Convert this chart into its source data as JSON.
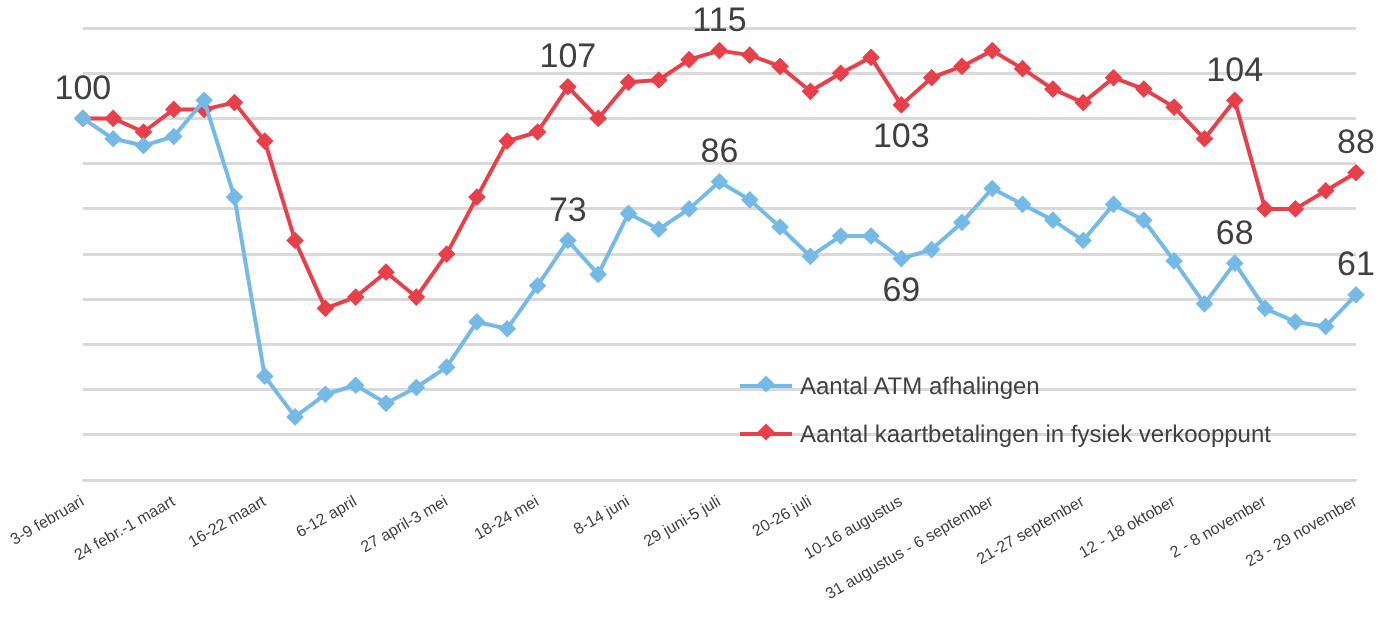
{
  "chart_data": {
    "type": "line",
    "categories": [
      "3-9 februari",
      null,
      null,
      "24 febr.-1 maart",
      null,
      null,
      "16-22 maart",
      null,
      null,
      "6-12 april",
      null,
      null,
      "27 april-3 mei",
      null,
      null,
      "18-24 mei",
      null,
      null,
      "8-14 juni",
      null,
      null,
      "29 juni-5 juli",
      null,
      null,
      "20-26 juli",
      null,
      null,
      "10-16 augustus",
      null,
      null,
      "31 augustus - 6 september",
      null,
      null,
      "21-27 september",
      null,
      null,
      "12 - 18 oktober",
      null,
      null,
      "2 - 8 november",
      null,
      null,
      "23 - 29 november"
    ],
    "series": [
      {
        "name": "Aantal ATM afhalingen",
        "color": "#75b9e6",
        "values": [
          100,
          95.5,
          94,
          96,
          104,
          82.6,
          43,
          34,
          39,
          41,
          37,
          40.5,
          45,
          55,
          53.5,
          63,
          73,
          65.5,
          79,
          75.5,
          80,
          86,
          82,
          76,
          69.5,
          74,
          74,
          69,
          71,
          77,
          84.5,
          81,
          77.5,
          73,
          81,
          77.5,
          68.5,
          59,
          68,
          58,
          55,
          54,
          61
        ],
        "value_labels": [
          null,
          null,
          null,
          null,
          null,
          null,
          null,
          null,
          null,
          null,
          null,
          null,
          null,
          null,
          null,
          null,
          "73",
          null,
          null,
          null,
          null,
          "86",
          null,
          null,
          null,
          null,
          null,
          "69",
          null,
          null,
          null,
          null,
          null,
          null,
          null,
          null,
          null,
          null,
          "68",
          null,
          null,
          null,
          "61"
        ]
      },
      {
        "name": "Aantal kaartbetalingen in fysiek verkooppunt",
        "color": "#e8404a",
        "values": [
          100,
          100,
          97,
          102,
          102,
          103.5,
          95,
          73,
          58,
          60.5,
          66,
          60.5,
          70,
          82.6,
          95,
          97,
          107,
          100,
          108,
          108.5,
          113,
          115,
          114,
          111.5,
          106,
          110,
          113.5,
          103,
          109,
          111.5,
          115,
          111,
          106.5,
          103.5,
          109,
          106.5,
          102.5,
          95.5,
          104,
          80,
          80,
          84,
          88
        ],
        "value_labels": [
          "100",
          null,
          null,
          null,
          null,
          null,
          null,
          null,
          null,
          null,
          null,
          null,
          null,
          null,
          null,
          null,
          "107",
          null,
          null,
          null,
          null,
          "115",
          null,
          null,
          null,
          null,
          null,
          "103",
          null,
          null,
          null,
          null,
          null,
          null,
          null,
          null,
          null,
          null,
          "104",
          null,
          null,
          null,
          "88"
        ]
      }
    ],
    "ylim": [
      20,
      120
    ],
    "yticks": [
      {
        "value": 20,
        "label": null
      },
      {
        "value": 30,
        "label": null
      },
      {
        "value": 40,
        "label": null
      },
      {
        "value": 50,
        "label": null
      },
      {
        "value": 60,
        "label": null
      },
      {
        "value": 70,
        "label": null
      },
      {
        "value": 80,
        "label": null
      },
      {
        "value": 90,
        "label": null
      },
      {
        "value": 100,
        "label": null
      },
      {
        "value": 110,
        "label": null
      },
      {
        "value": 120,
        "label": null
      }
    ],
    "tick_labels": "x",
    "grid": "y",
    "legend": "bottom right",
    "marker": "diamond",
    "line_style": "solid"
  }
}
